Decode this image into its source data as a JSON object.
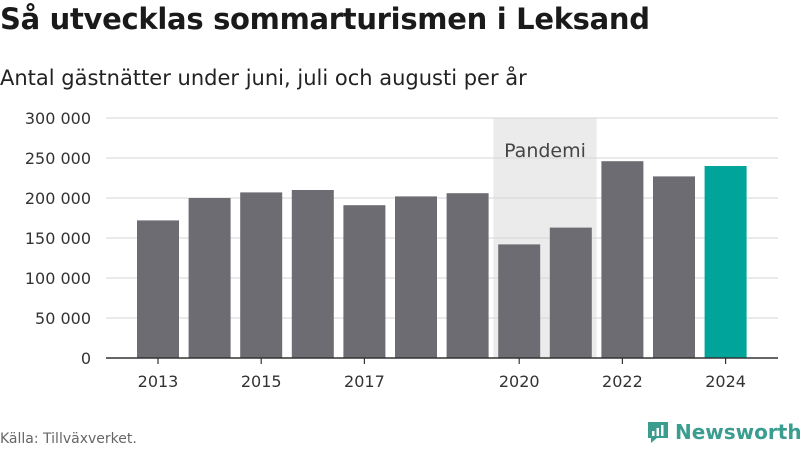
{
  "title": "Så utvecklas sommarturismen i Leksand",
  "subtitle": "Antal gästnätter under juni, juli och augusti per år",
  "source": "Källa: Tillväxverket.",
  "brand": "Newsworthy",
  "colors": {
    "bar": "#6d6c72",
    "highlight": "#00a49a",
    "shade": "#ebebeb",
    "grid": "#d4d4d4",
    "axis": "#333333",
    "brand": "#3a9d8f"
  },
  "chart_data": {
    "type": "bar",
    "x": [
      2013,
      2014,
      2015,
      2016,
      2017,
      2018,
      2019,
      2020,
      2021,
      2022,
      2023,
      2024
    ],
    "values": [
      172000,
      200000,
      207000,
      210000,
      191000,
      202000,
      206000,
      142000,
      163000,
      246000,
      227000,
      240000
    ],
    "highlight_x": 2024,
    "x_tick_labels": [
      "2013",
      "2015",
      "2017",
      "2020",
      "2022",
      "2024"
    ],
    "y_tick_labels": [
      "0",
      "50 000",
      "100 000",
      "150 000",
      "200 000",
      "250 000",
      "300 000"
    ],
    "ylim": [
      0,
      300000
    ],
    "grid": true,
    "shaded_region": {
      "from": 2020,
      "to": 2021,
      "label": "Pandemi"
    }
  }
}
